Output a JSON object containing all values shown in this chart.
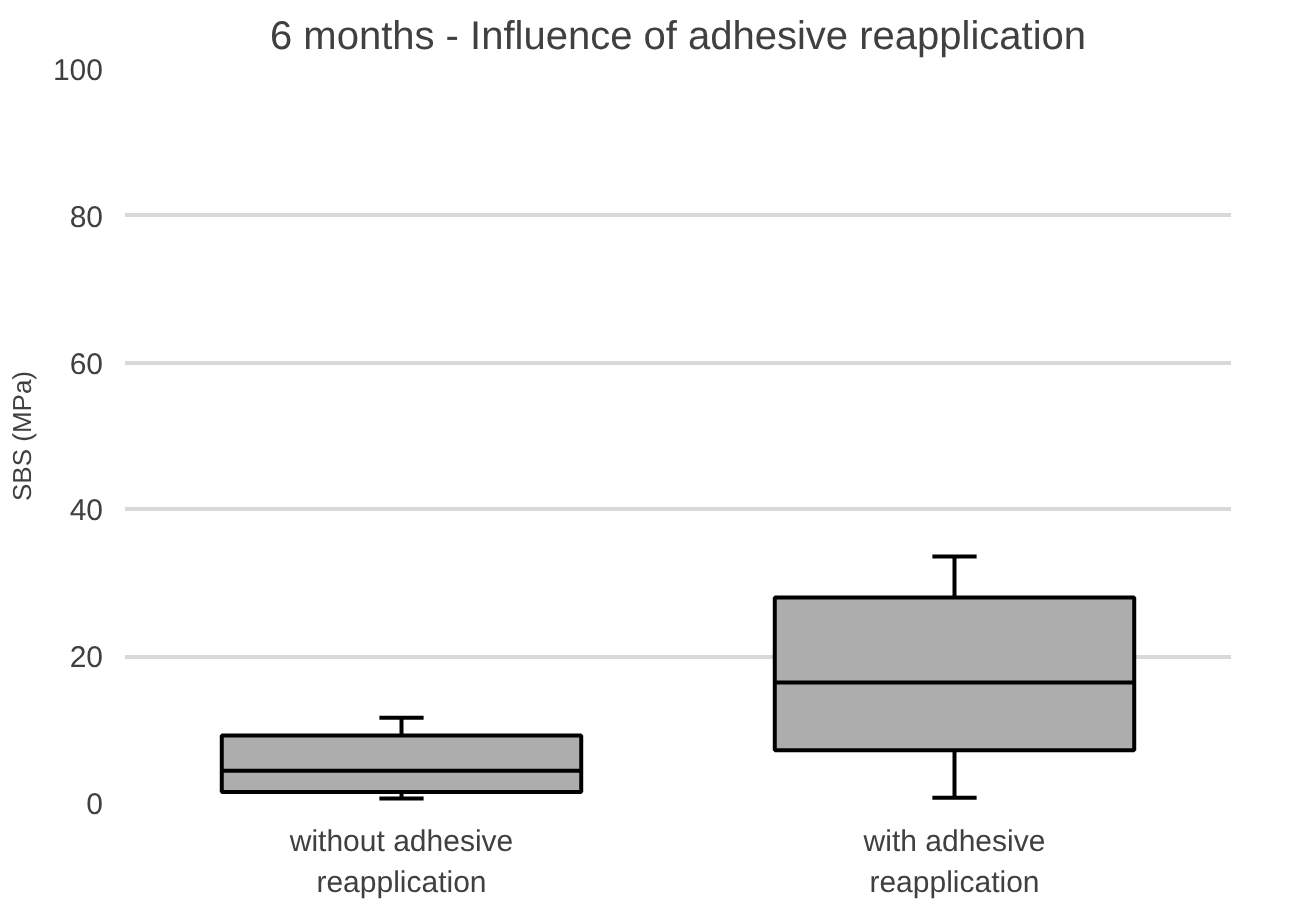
{
  "chart_data": {
    "type": "box",
    "title": "6 months - Influence of adhesive reapplication",
    "ylabel": "SBS (MPa)",
    "categories": [
      "without adhesive reapplication",
      "with adhesive reapplication"
    ],
    "color": "#adadad",
    "boxes": [
      {
        "low": 0.6,
        "q1": 1.5,
        "median": 4.4,
        "q3": 9.2,
        "high": 11.6
      },
      {
        "low": 0.7,
        "q1": 7.2,
        "median": 16.4,
        "q3": 28,
        "high": 33.6
      }
    ],
    "ylim": [
      0,
      100
    ],
    "yticks": [
      0,
      20,
      40,
      60,
      80,
      100
    ],
    "grid": "y"
  }
}
